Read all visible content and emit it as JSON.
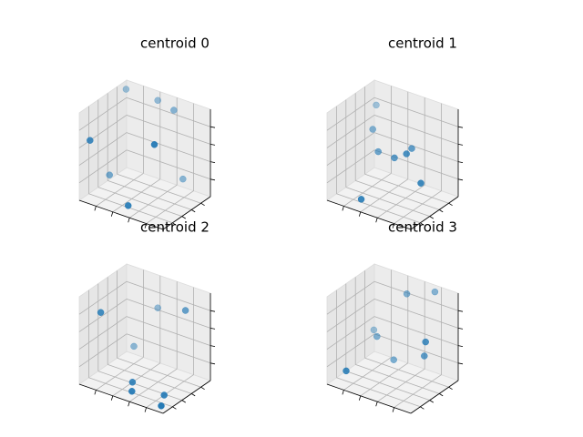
{
  "chart_data": [
    {
      "type": "scatter3d",
      "title": "centroid 0",
      "color": "#1f77b4",
      "points": [
        [
          0.84,
          0.1,
          0.88
        ],
        [
          0.55,
          0.06,
          0.1
        ],
        [
          0.05,
          0.55,
          0.1
        ],
        [
          0.05,
          0.9,
          0.95
        ],
        [
          0.4,
          0.95,
          0.92
        ],
        [
          0.1,
          0.05,
          0.7
        ],
        [
          0.7,
          0.95,
          0.12
        ],
        [
          0.62,
          0.9,
          0.9
        ]
      ]
    },
    {
      "type": "scatter3d",
      "title": "centroid 1",
      "color": "#1f77b4",
      "points": [
        [
          0.38,
          0.05,
          0.12
        ],
        [
          0.7,
          0.55,
          0.62
        ],
        [
          0.95,
          0.3,
          0.4
        ],
        [
          0.3,
          0.55,
          0.45
        ],
        [
          0.15,
          0.7,
          0.6
        ],
        [
          0.55,
          0.45,
          0.5
        ],
        [
          0.75,
          0.35,
          0.65
        ],
        [
          0.05,
          0.95,
          0.75
        ]
      ]
    },
    {
      "type": "scatter3d",
      "title": "centroid 2",
      "color": "#1f77b4",
      "points": [
        [
          0.2,
          0.1,
          0.85
        ],
        [
          0.2,
          0.8,
          0.2
        ],
        [
          0.55,
          0.15,
          0.15
        ],
        [
          0.6,
          0.05,
          0.1
        ],
        [
          0.9,
          0.65,
          0.9
        ],
        [
          0.95,
          0.05,
          0.05
        ],
        [
          0.9,
          0.2,
          0.1
        ],
        [
          0.4,
          0.95,
          0.65
        ]
      ]
    },
    {
      "type": "scatter3d",
      "title": "centroid 3",
      "color": "#1f77b4",
      "points": [
        [
          0.2,
          0.05,
          0.2
        ],
        [
          0.05,
          0.9,
          0.3
        ],
        [
          0.4,
          0.7,
          0.15
        ],
        [
          0.95,
          0.4,
          0.65
        ],
        [
          0.5,
          0.8,
          0.9
        ],
        [
          0.75,
          0.95,
          0.95
        ],
        [
          0.2,
          0.7,
          0.35
        ],
        [
          0.85,
          0.55,
          0.4
        ]
      ]
    }
  ]
}
